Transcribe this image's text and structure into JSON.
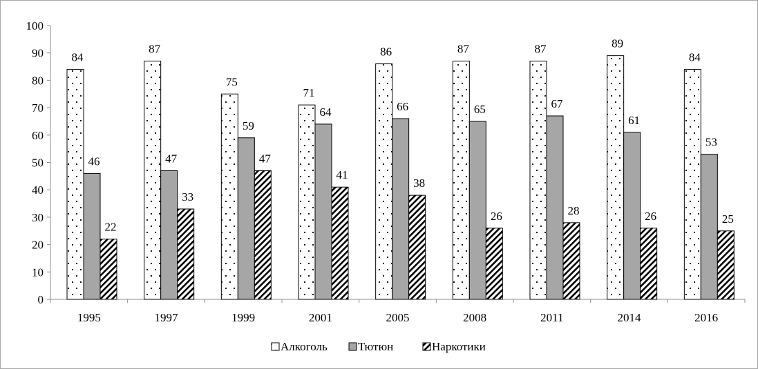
{
  "chart_data": {
    "type": "bar",
    "categories": [
      "1995",
      "1997",
      "1999",
      "2001",
      "2005",
      "2008",
      "2011",
      "2014",
      "2016"
    ],
    "series": [
      {
        "name": "Алкоголь",
        "values": [
          84,
          87,
          75,
          71,
          86,
          87,
          87,
          89,
          84
        ],
        "pattern": "dots",
        "color": "#ffffff"
      },
      {
        "name": "Тютюн",
        "values": [
          46,
          47,
          59,
          64,
          66,
          65,
          67,
          61,
          53
        ],
        "pattern": "solid",
        "color": "#a6a6a6"
      },
      {
        "name": "Наркотики",
        "values": [
          22,
          33,
          47,
          41,
          38,
          26,
          28,
          26,
          25
        ],
        "pattern": "diagonal",
        "color": "#000000"
      }
    ],
    "ylim": [
      0,
      100
    ],
    "yticks": [
      "0",
      "10",
      "20",
      "30",
      "40",
      "50",
      "60",
      "70",
      "80",
      "90",
      "100"
    ],
    "grid": false,
    "legend_position": "bottom",
    "data_labels": true
  }
}
